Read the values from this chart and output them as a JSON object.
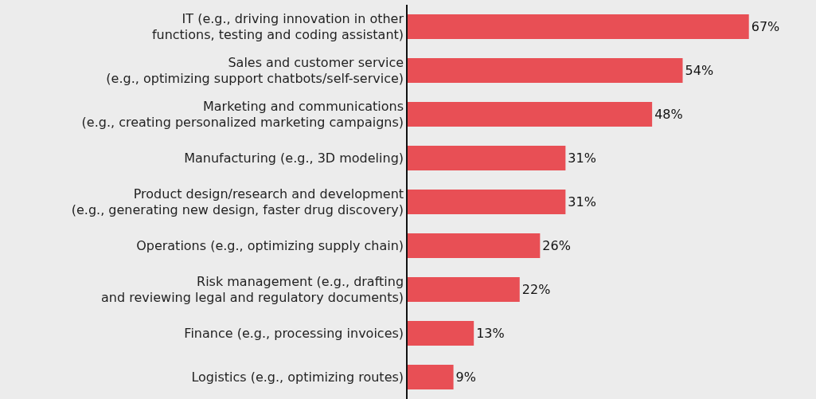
{
  "chart_data": {
    "type": "bar",
    "orientation": "horizontal",
    "categories": [
      "IT (e.g., driving innovation in other\nfunctions, testing and coding assistant)",
      "Sales and customer service\n(e.g., optimizing support chatbots/self-service)",
      "Marketing and communications\n(e.g., creating personalized marketing campaigns)",
      "Manufacturing (e.g., 3D modeling)",
      "Product design/research and development\n(e.g., generating new design, faster drug discovery)",
      "Operations (e.g., optimizing supply chain)",
      "Risk management (e.g., drafting\nand reviewing legal and regulatory documents)",
      "Finance (e.g., processing invoices)",
      "Logistics (e.g., optimizing routes)"
    ],
    "values": [
      67,
      54,
      48,
      31,
      31,
      26,
      22,
      13,
      9
    ],
    "value_labels": [
      "67%",
      "54%",
      "48%",
      "31%",
      "31%",
      "26%",
      "22%",
      "13%",
      "9%"
    ],
    "color": "#e84f55",
    "grid": false,
    "legend": false
  }
}
